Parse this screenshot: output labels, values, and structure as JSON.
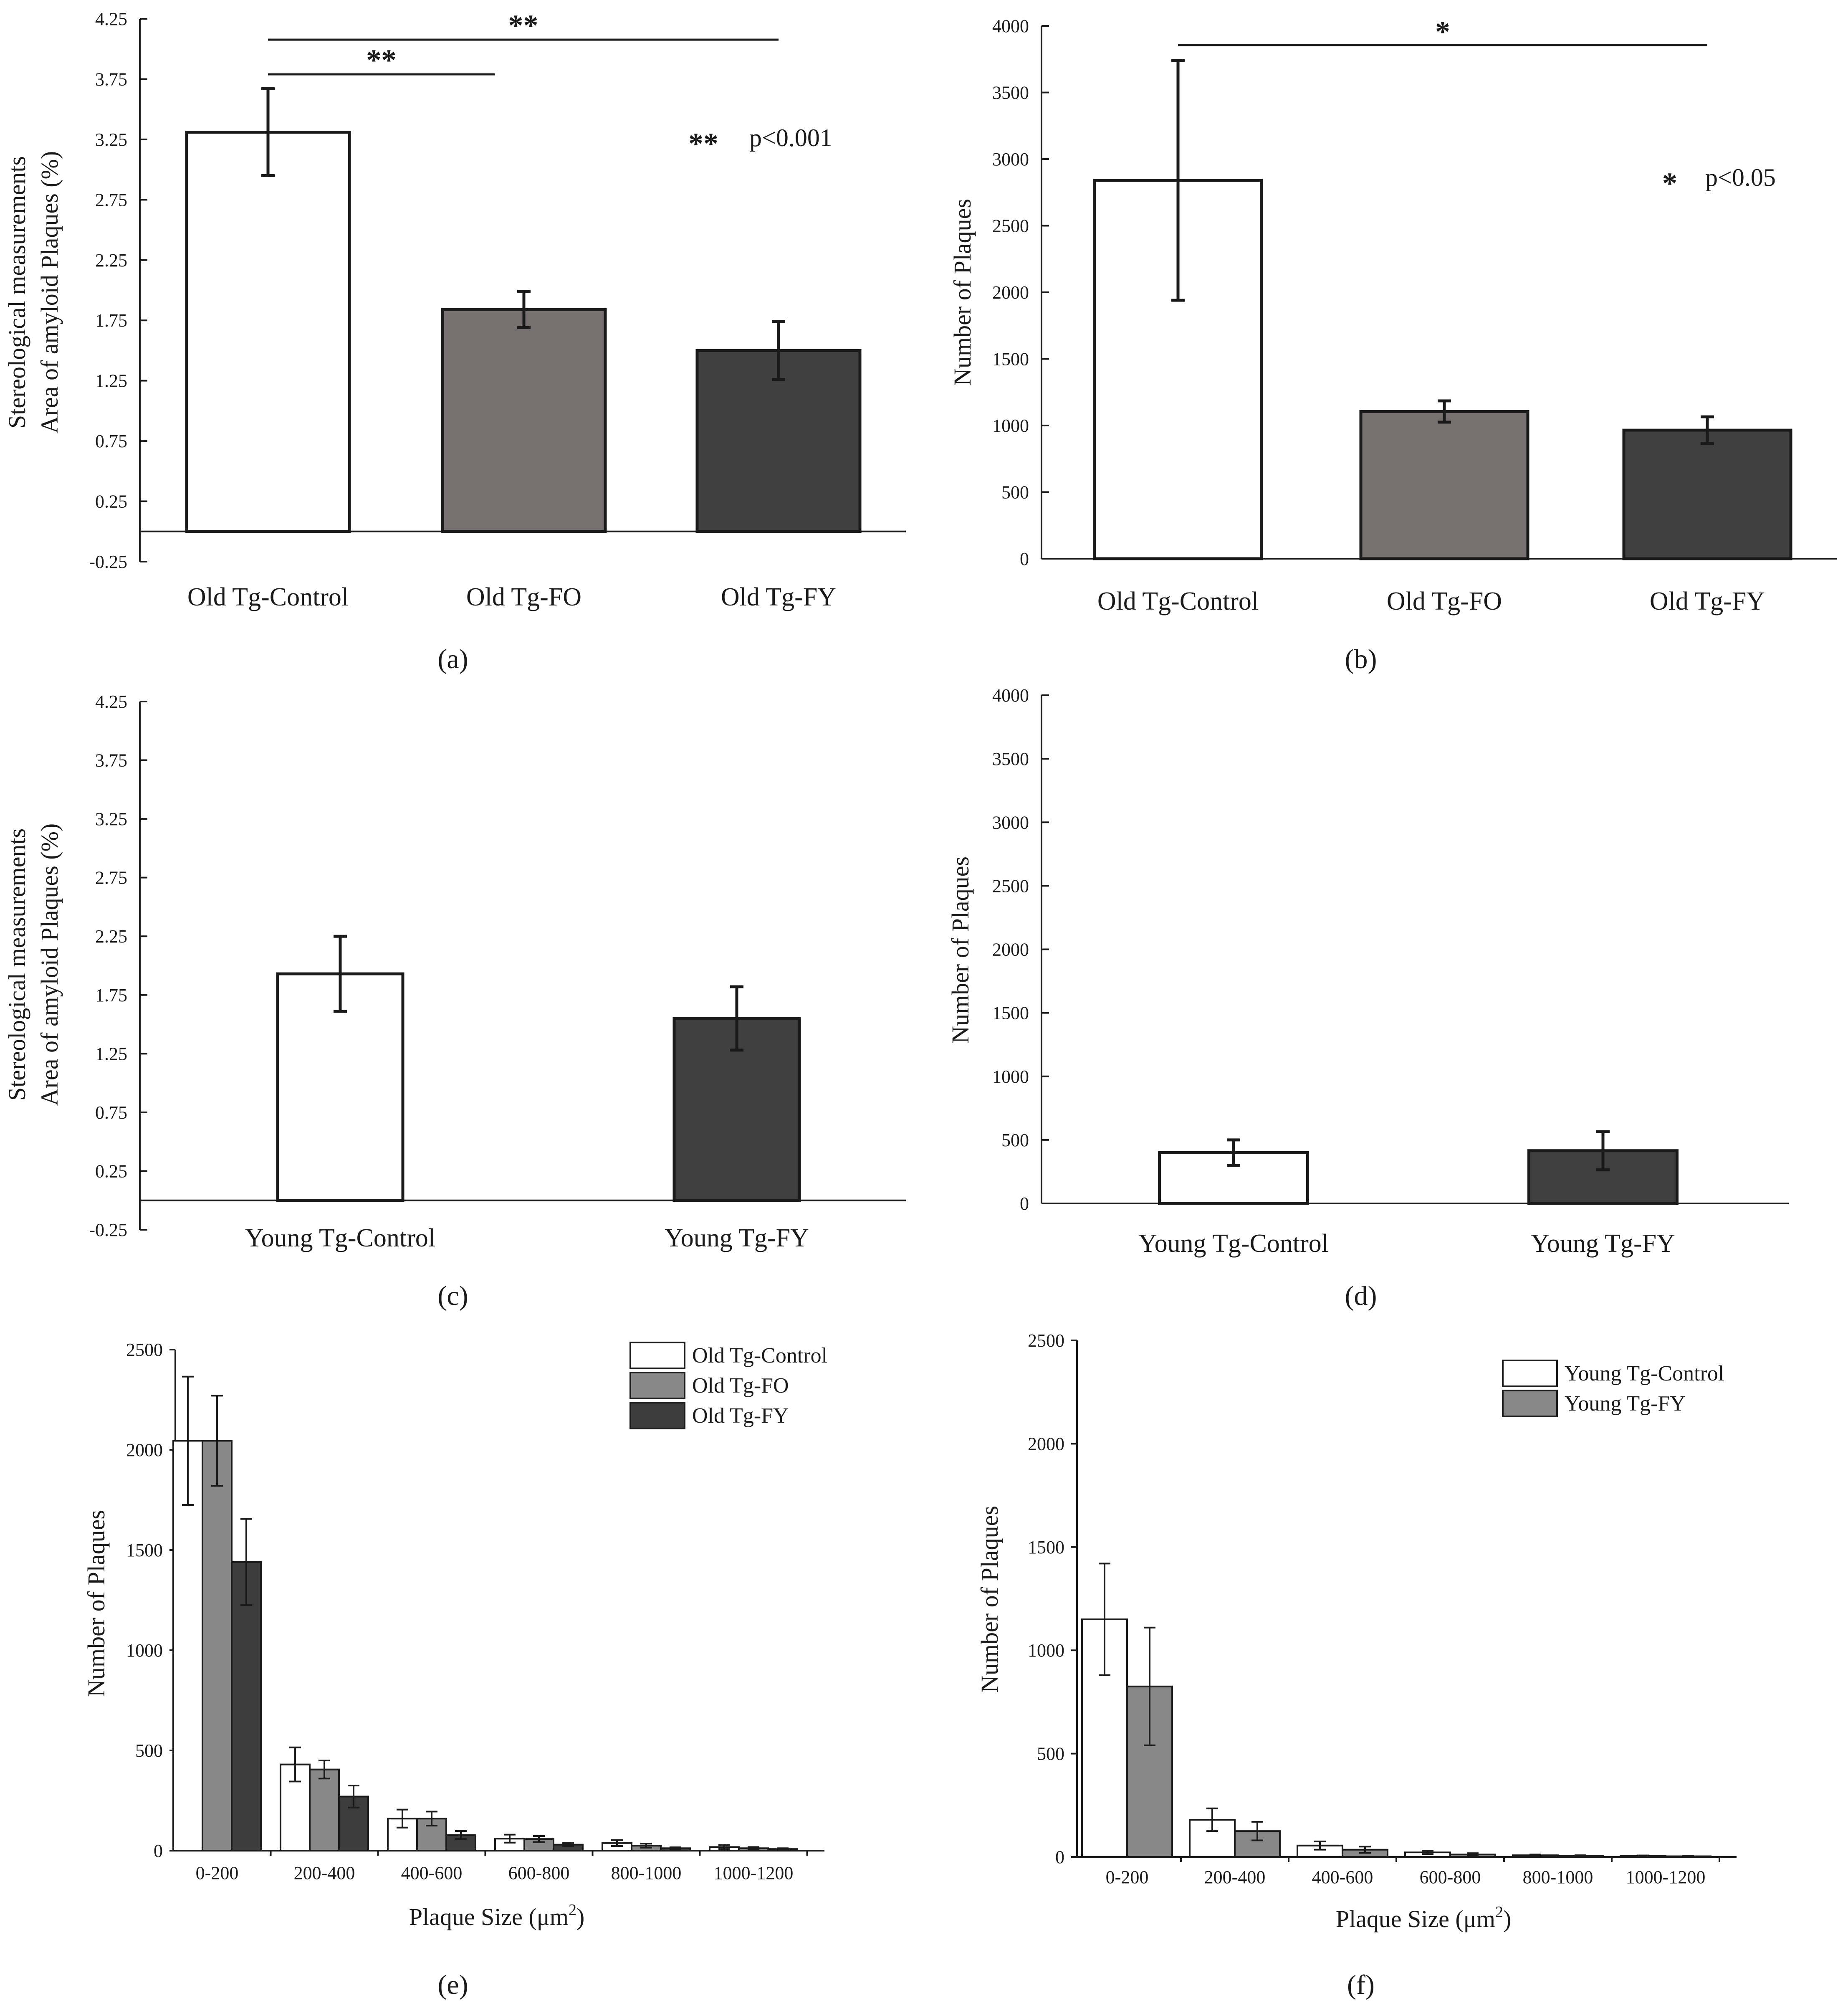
{
  "figure": {
    "colors": {
      "control": "#ffffff",
      "fo": "#767170",
      "fy": "#404040",
      "hist_fo": "#888888",
      "hist_fy": "#3c3c3c",
      "young_fy_hist": "#888888"
    }
  },
  "chart_data": [
    {
      "panel": "(a)",
      "type": "bar",
      "ylabel_lines": [
        "Stereological measurements",
        "Area of amyloid Plaques (%)"
      ],
      "categories": [
        "Old Tg-Control",
        "Old Tg-FO",
        "Old Tg-FY"
      ],
      "values": [
        3.31,
        1.84,
        1.5
      ],
      "errors": [
        0.36,
        0.15,
        0.24
      ],
      "ylim": [
        -0.25,
        4.25
      ],
      "yticks": [
        "-0.25",
        "0.25",
        "0.75",
        "1.25",
        "1.75",
        "2.25",
        "2.75",
        "3.25",
        "3.75",
        "4.25"
      ],
      "significance": [
        {
          "from": 0,
          "to": 1,
          "label": "**"
        },
        {
          "from": 0,
          "to": 2,
          "label": "**"
        }
      ],
      "note_stars": "**",
      "note_text": "p<0.001"
    },
    {
      "panel": "(b)",
      "type": "bar",
      "ylabel_lines": [
        "Number of Plaques"
      ],
      "categories": [
        "Old Tg-Control",
        "Old Tg-FO",
        "Old Tg-FY"
      ],
      "values": [
        2840,
        1105,
        965
      ],
      "errors": [
        900,
        80,
        100
      ],
      "ylim": [
        0,
        4000
      ],
      "yticks": [
        "0",
        "500",
        "1000",
        "1500",
        "2000",
        "2500",
        "3000",
        "3500",
        "4000"
      ],
      "significance": [
        {
          "from": 0,
          "to": 2,
          "label": "*"
        }
      ],
      "note_stars": "*",
      "note_text": "p<0.05"
    },
    {
      "panel": "(c)",
      "type": "bar",
      "ylabel_lines": [
        "Stereological measurements",
        "Area of amyloid Plaques (%)"
      ],
      "categories": [
        "Young Tg-Control",
        "Young Tg-FY"
      ],
      "values": [
        1.93,
        1.55
      ],
      "errors": [
        0.32,
        0.27
      ],
      "ylim": [
        -0.25,
        4.25
      ],
      "yticks": [
        "-0.25",
        "0.25",
        "0.75",
        "1.25",
        "1.75",
        "2.25",
        "2.75",
        "3.25",
        "3.75",
        "4.25"
      ]
    },
    {
      "panel": "(d)",
      "type": "bar",
      "ylabel_lines": [
        "Number of Plaques"
      ],
      "categories": [
        "Young Tg-Control",
        "Young Tg-FY"
      ],
      "values": [
        400,
        415
      ],
      "errors": [
        100,
        150
      ],
      "ylim": [
        0,
        4000
      ],
      "yticks": [
        "0",
        "500",
        "1000",
        "1500",
        "2000",
        "2500",
        "3000",
        "3500",
        "4000"
      ]
    },
    {
      "panel": "(e)",
      "type": "bar",
      "xlabel": "Plaque Size (μm",
      "xlabel_sup": "2",
      "xlabel_end": ")",
      "ylabel_lines": [
        "Number of Plaques"
      ],
      "categories": [
        "0-200",
        "200-400",
        "400-600",
        "600-800",
        "800-1000",
        "1000-1200"
      ],
      "series": [
        {
          "name": "Old Tg-Control",
          "values": [
            2045,
            430,
            160,
            60,
            38,
            18
          ],
          "errors": [
            320,
            85,
            45,
            20,
            15,
            10
          ]
        },
        {
          "name": "Old Tg-FO",
          "values": [
            2045,
            405,
            160,
            58,
            25,
            12
          ],
          "errors": [
            225,
            45,
            35,
            15,
            10,
            6
          ]
        },
        {
          "name": "Old Tg-FY",
          "values": [
            1440,
            270,
            78,
            30,
            12,
            8
          ],
          "errors": [
            215,
            55,
            20,
            8,
            5,
            4
          ]
        }
      ],
      "ylim": [
        0,
        2500
      ],
      "yticks": [
        "0",
        "500",
        "1000",
        "1500",
        "2000",
        "2500"
      ]
    },
    {
      "panel": "(f)",
      "type": "bar",
      "xlabel": "Plaque Size (μm",
      "xlabel_sup": "2",
      "xlabel_end": ")",
      "ylabel_lines": [
        "Number of Plaques"
      ],
      "categories": [
        "0-200",
        "200-400",
        "400-600",
        "600-800",
        "800-1000",
        "1000-1200"
      ],
      "series": [
        {
          "name": "Young Tg-Control",
          "values": [
            1150,
            180,
            55,
            22,
            8,
            4
          ],
          "errors": [
            270,
            55,
            20,
            8,
            4,
            3
          ]
        },
        {
          "name": "Young Tg-FY",
          "values": [
            825,
            125,
            35,
            12,
            5,
            3
          ],
          "errors": [
            285,
            45,
            15,
            6,
            3,
            2
          ]
        }
      ],
      "ylim": [
        0,
        2500
      ],
      "yticks": [
        "0",
        "500",
        "1000",
        "1500",
        "2000",
        "2500"
      ]
    }
  ]
}
